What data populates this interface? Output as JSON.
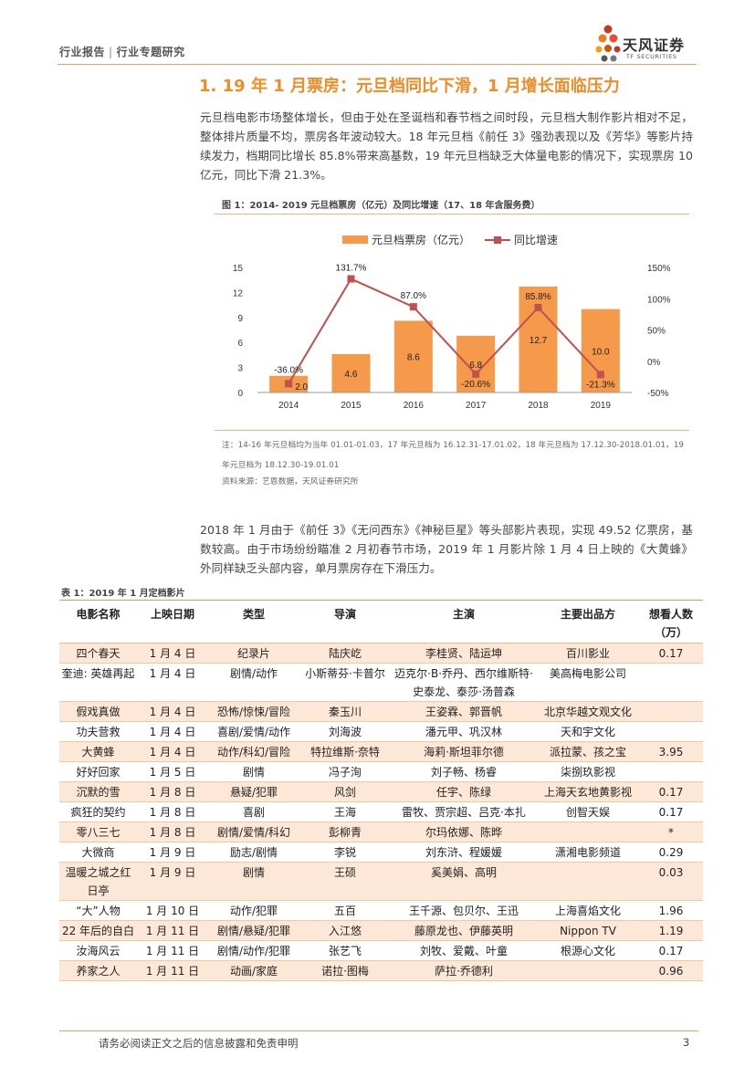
{
  "header": {
    "category": "行业报告",
    "separator": "|",
    "subcategory": "行业专题研究",
    "brand_cn": "天风证券",
    "brand_en": "TF SECURITIES"
  },
  "section": {
    "title": "1. 19 年 1 月票房：元旦档同比下滑，1 月增长面临压力",
    "para1": "元旦档电影市场整体增长，但由于处在圣诞档和春节档之间时段，元旦档大制作影片相对不足，整体排片质量不均，票房各年波动较大。18 年元旦档《前任 3》强劲表现以及《芳华》等影片持续发力，档期同比增长 85.8%带来高基数，19 年元旦档缺乏大体量电影的情况下，实现票房 10 亿元，同比下滑 21.3%。",
    "para2": "2018 年 1 月由于《前任 3》《无问西东》《神秘巨星》等头部影片表现，实现 49.52 亿票房，基数较高。由于市场纷纷瞄准 2 月初春节市场，2019 年 1 月影片除 1 月 4 日上映的《大黄蜂》外同样缺乏头部内容，单月票房存在下滑压力。"
  },
  "figure": {
    "caption": "图 1：2014- 2019 元旦档票房（亿元）及同比增速（17、18 年含服务费）",
    "note_line1": "注：14-16 年元旦档均为当年 01.01-01.03，17 年元旦档为 16.12.31-17.01.02，18 年元旦档为 17.12.30-2018.01.01，19",
    "note_line2": "年元旦档为 18.12.30-19.01.01",
    "source": "资料来源：艺恩数据，天风证券研究所"
  },
  "chart_data": {
    "type": "bar",
    "title": "",
    "categories": [
      "2014",
      "2015",
      "2016",
      "2017",
      "2018",
      "2019"
    ],
    "series": [
      {
        "name": "元旦档票房（亿元）",
        "type": "bar",
        "axis": "left",
        "values": [
          2.0,
          4.6,
          8.6,
          6.8,
          12.7,
          10.0
        ],
        "labels": [
          "2.0",
          "4.6",
          "8.6",
          "6.8",
          "12.7",
          "10.0"
        ]
      },
      {
        "name": "同比增速",
        "type": "line",
        "axis": "right",
        "values": [
          -36.0,
          131.7,
          87.0,
          -20.6,
          85.8,
          -21.3
        ],
        "labels": [
          "-36.0%",
          "131.7%",
          "87.0%",
          "-20.6%",
          "85.8%",
          "-21.3%"
        ]
      }
    ],
    "ylim": [
      0,
      15
    ],
    "yticks": [
      "0",
      "3",
      "6",
      "9",
      "12",
      "15"
    ],
    "y2lim": [
      -50,
      150
    ],
    "y2ticks": [
      "-50%",
      "0%",
      "50%",
      "100%",
      "150%"
    ],
    "legend_position": "top",
    "colors": {
      "bar": "#f5994a",
      "line": "#c0504d"
    }
  },
  "table": {
    "caption": "表 1：2019 年 1 月定档影片",
    "headers": [
      "电影名称",
      "上映日期",
      "类型",
      "导演",
      "主演",
      "主要出品方",
      "想看人数（万）"
    ],
    "rows": [
      [
        "四个春天",
        "1 月 4 日",
        "纪录片",
        "陆庆屹",
        "李桂贤、陆运坤",
        "百川影业",
        "0.17"
      ],
      [
        "奎迪: 英雄再起",
        "1 月 4 日",
        "剧情/动作",
        "小斯蒂芬·卡普尔",
        "迈克尔·B·乔丹、西尔维斯特·史泰龙、泰莎·汤普森",
        "美高梅电影公司",
        ""
      ],
      [
        "假戏真做",
        "1 月 4 日",
        "恐怖/惊悚/冒险",
        "秦玉川",
        "王姿霖、郭晋帆",
        "北京华越文观文化",
        ""
      ],
      [
        "功夫营救",
        "1 月 4 日",
        "喜剧/爱情/动作",
        "刘海波",
        "潘元甲、巩汉林",
        "天和宇文化",
        ""
      ],
      [
        "大黄蜂",
        "1 月 4 日",
        "动作/科幻/冒险",
        "特拉维斯·奈特",
        "海莉·斯坦菲尔德",
        "派拉蒙、孩之宝",
        "3.95"
      ],
      [
        "好好回家",
        "1 月 5 日",
        "剧情",
        "冯子洵",
        "刘子畅、杨睿",
        "柒捌玖影视",
        ""
      ],
      [
        "沉默的雪",
        "1 月 8 日",
        "悬疑/犯罪",
        "风剑",
        "任宇、陈绿",
        "上海天玄地黄影视",
        "0.17"
      ],
      [
        "疯狂的契约",
        "1 月 8 日",
        "喜剧",
        "王海",
        "雷牧、贾宗超、吕克·本扎",
        "创智天娱",
        "0.17"
      ],
      [
        "零八三七",
        "1 月 8 日",
        "剧情/爱情/科幻",
        "彭柳青",
        "尔玛依娜、陈晔",
        "",
        "*"
      ],
      [
        "大微商",
        "1 月 9 日",
        "励志/剧情",
        "李锐",
        "刘东浒、程媛媛",
        "潇湘电影频道",
        "0.29"
      ],
      [
        "温暖之城之红日亭",
        "1 月 9 日",
        "剧情",
        "王硕",
        "奚美娟、高明",
        "",
        "0.03"
      ],
      [
        "“大”人物",
        "1 月 10 日",
        "动作/犯罪",
        "五百",
        "王千源、包贝尔、王迅",
        "上海喜焰文化",
        "1.96"
      ],
      [
        "22 年后的自白",
        "1 月 11 日",
        "剧情/悬疑/犯罪",
        "入江悠",
        "藤原龙也、伊藤英明",
        "Nippon TV",
        "1.19"
      ],
      [
        "汝海风云",
        "1 月 11 日",
        "剧情/动作/犯罪",
        "张艺飞",
        "刘牧、爱戴、叶童",
        "根源心文化",
        "0.17"
      ],
      [
        "养家之人",
        "1 月 11 日",
        "动画/家庭",
        "诺拉·图梅",
        "萨拉·乔德利",
        "",
        "0.96"
      ]
    ]
  },
  "footer": {
    "disclaimer": "请务必阅读正文之后的信息披露和免责申明",
    "page": "3"
  }
}
